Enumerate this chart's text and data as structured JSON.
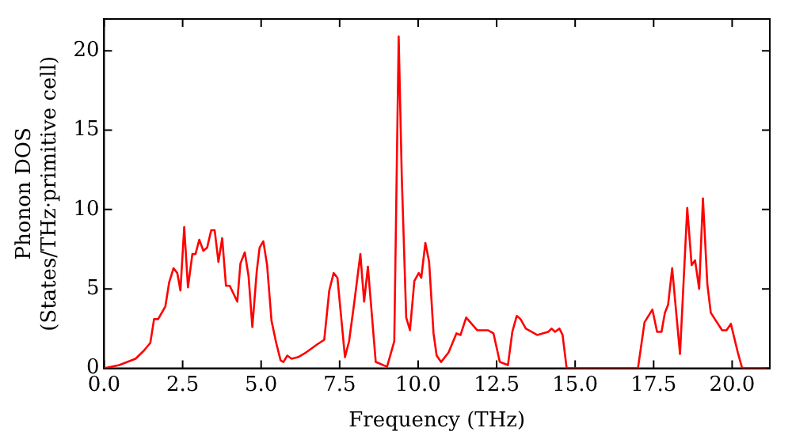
{
  "chart_data": {
    "type": "line",
    "xlabel": "Frequency (THz)",
    "ylabel": "Phonon DOS\n(States/THz·primitive cell)",
    "xlim": [
      0,
      21.2
    ],
    "ylim": [
      0,
      22
    ],
    "xticks": [
      {
        "value": 0,
        "label": "0.0"
      },
      {
        "value": 2.5,
        "label": "2.5"
      },
      {
        "value": 5,
        "label": "5.0"
      },
      {
        "value": 7.5,
        "label": "7.5"
      },
      {
        "value": 10,
        "label": "10.0"
      },
      {
        "value": 12.5,
        "label": "12.5"
      },
      {
        "value": 15,
        "label": "15.0"
      },
      {
        "value": 17.5,
        "label": "17.5"
      },
      {
        "value": 20,
        "label": "20.0"
      }
    ],
    "yticks": [
      0,
      5,
      10,
      15,
      20
    ],
    "grid": false,
    "legend": false,
    "marker": "none",
    "line_style": "solid",
    "series": [
      {
        "color": "#ff0000",
        "x": [
          0,
          0.48,
          1.0,
          1.26,
          1.47,
          1.59,
          1.72,
          1.95,
          2.07,
          2.21,
          2.33,
          2.43,
          2.55,
          2.67,
          2.81,
          2.91,
          3.03,
          3.16,
          3.28,
          3.41,
          3.52,
          3.64,
          3.76,
          3.88,
          4.0,
          4.24,
          4.34,
          4.48,
          4.6,
          4.72,
          4.86,
          4.95,
          5.07,
          5.19,
          5.33,
          5.48,
          5.62,
          5.71,
          5.83,
          5.97,
          6.17,
          6.43,
          6.78,
          7.01,
          7.17,
          7.31,
          7.43,
          7.67,
          7.8,
          7.97,
          8.16,
          8.28,
          8.4,
          8.65,
          9.01,
          9.24,
          9.38,
          9.48,
          9.62,
          9.74,
          9.88,
          10.02,
          10.1,
          10.23,
          10.35,
          10.49,
          10.59,
          10.73,
          10.97,
          11.22,
          11.35,
          11.53,
          11.88,
          12.22,
          12.4,
          12.6,
          12.86,
          13.0,
          13.14,
          13.26,
          13.43,
          13.79,
          14.14,
          14.25,
          14.36,
          14.5,
          14.6,
          14.73,
          17.0,
          17.21,
          17.46,
          17.61,
          17.75,
          17.86,
          17.96,
          18.09,
          18.34,
          18.57,
          18.71,
          18.82,
          18.95,
          19.07,
          19.21,
          19.32,
          19.68,
          19.82,
          19.96,
          20.18,
          20.32,
          21.1
        ],
        "values": [
          0,
          0.2,
          0.6,
          1.1,
          1.6,
          3.1,
          3.1,
          3.9,
          5.4,
          6.3,
          6.0,
          4.9,
          8.9,
          5.1,
          7.2,
          7.2,
          8.1,
          7.4,
          7.6,
          8.7,
          8.7,
          6.7,
          8.2,
          5.2,
          5.2,
          4.2,
          6.6,
          7.3,
          5.8,
          2.6,
          6.1,
          7.6,
          8.0,
          6.5,
          3.0,
          1.6,
          0.5,
          0.4,
          0.8,
          0.6,
          0.7,
          1.0,
          1.5,
          1.8,
          4.9,
          6.0,
          5.7,
          0.7,
          1.7,
          4.2,
          7.2,
          4.2,
          6.4,
          0.4,
          0.1,
          1.7,
          20.9,
          12,
          3.2,
          2.4,
          5.5,
          6.0,
          5.7,
          7.9,
          6.7,
          2.2,
          0.8,
          0.4,
          1.0,
          2.2,
          2.1,
          3.2,
          2.4,
          2.4,
          2.2,
          0.4,
          0.2,
          2.3,
          3.3,
          3.1,
          2.5,
          2.1,
          2.3,
          2.5,
          2.3,
          2.5,
          2.1,
          0,
          0,
          2.9,
          3.7,
          2.3,
          2.3,
          3.5,
          4.0,
          6.3,
          0.9,
          10.1,
          6.5,
          6.8,
          5.0,
          10.7,
          5.3,
          3.5,
          2.4,
          2.4,
          2.8,
          1.0,
          0,
          0
        ]
      }
    ]
  }
}
